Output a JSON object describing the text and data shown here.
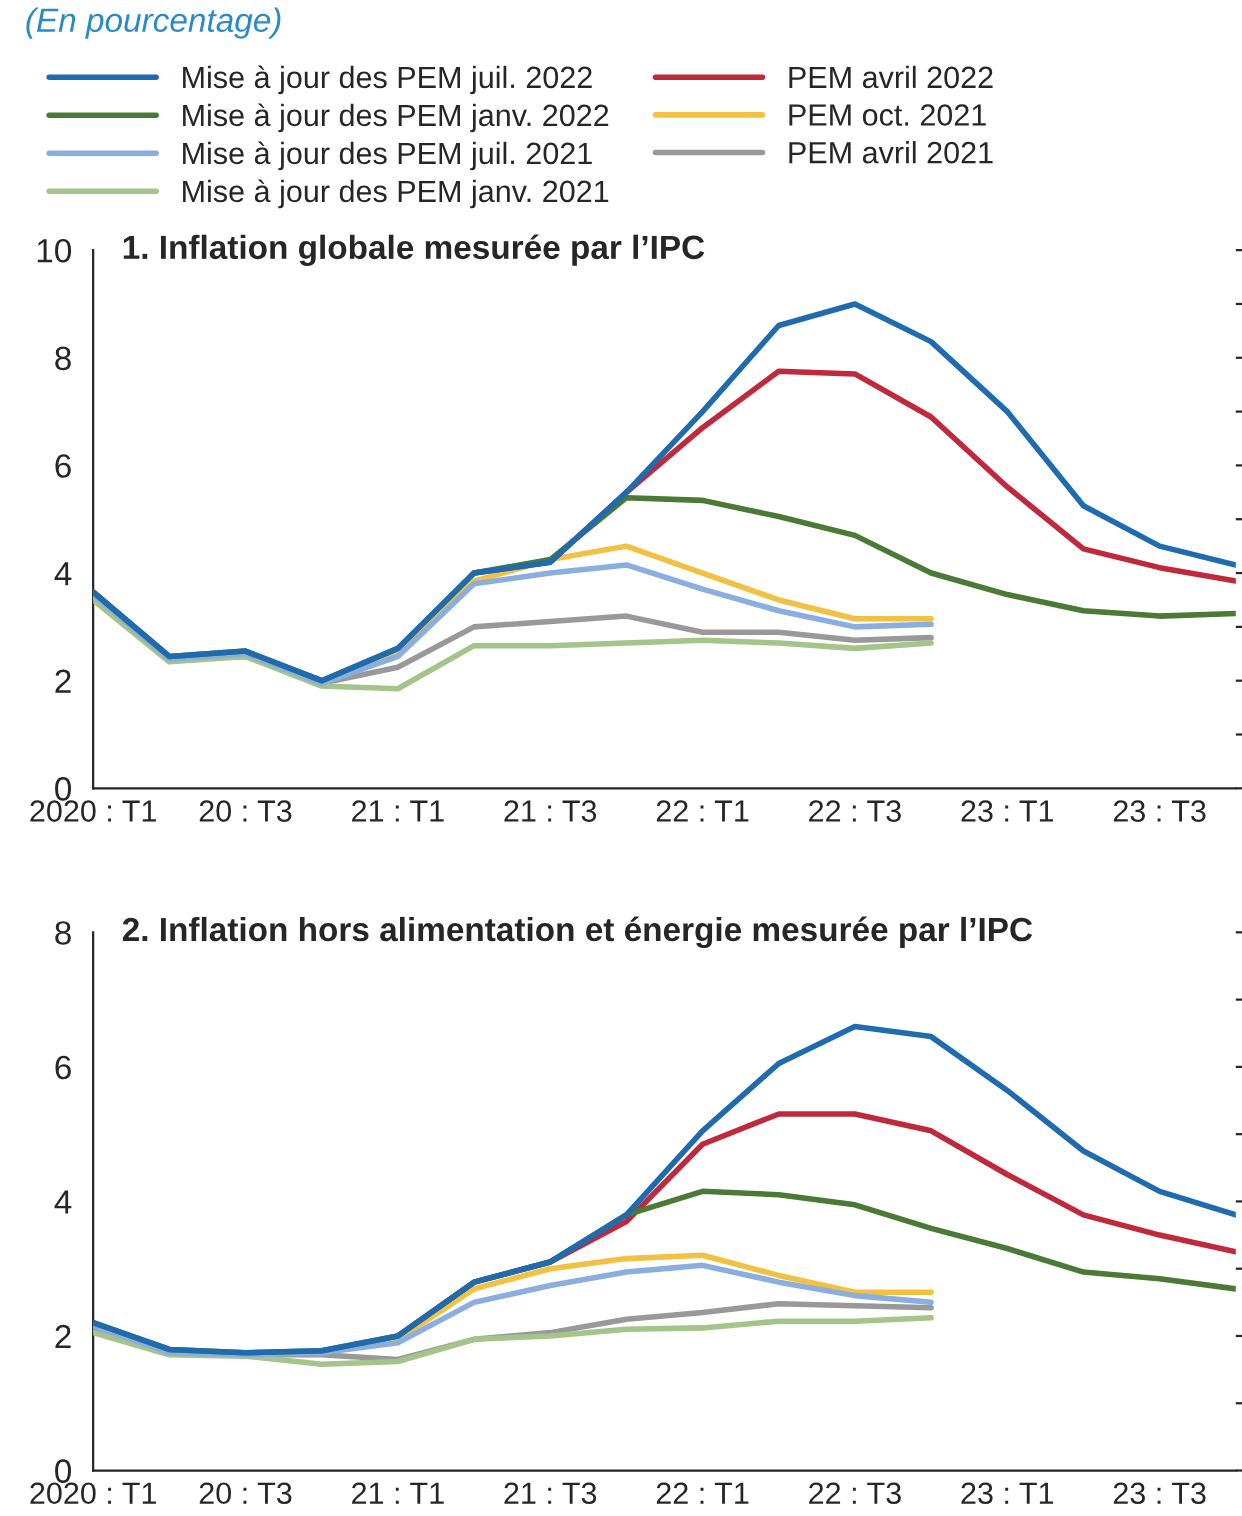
{
  "chart_data": [
    {
      "type": "line",
      "subtitle": "(En pourcentage)",
      "title": "1. Inflation globale mesurée par l’IPC",
      "categories": [
        "2020 : T1",
        null,
        "20 : T3",
        null,
        "21 : T1",
        null,
        "21 : T3",
        null,
        "22 : T1",
        null,
        "22 : T3",
        null,
        "23 : T1",
        null,
        "23 : T3",
        null
      ],
      "ylim": [
        0,
        10
      ],
      "yticks": [
        0,
        {
          "value": 1,
          "label": null
        },
        2,
        {
          "value": 3,
          "label": null
        },
        4,
        {
          "value": 5,
          "label": null
        },
        6,
        {
          "value": 7,
          "label": null
        },
        8,
        {
          "value": 9,
          "label": null
        },
        10
      ],
      "grid": false,
      "legend": "top",
      "marker": "none",
      "line_style": "solid",
      "series": [
        {
          "name": "Mise à jour des PEM juil. 2022",
          "color": "#1f6bb0",
          "values": [
            3.65,
            2.45,
            2.55,
            2.0,
            2.6,
            4.0,
            4.2,
            5.5,
            7.0,
            8.6,
            9.0,
            8.3,
            7.0,
            5.25,
            4.5,
            4.15
          ]
        },
        {
          "name": "Mise à jour des PEM janv. 2022",
          "color": "#4a7a35",
          "values": [
            3.65,
            2.45,
            2.55,
            2.0,
            2.6,
            4.0,
            4.25,
            5.4,
            5.35,
            5.05,
            4.7,
            4.0,
            3.6,
            3.3,
            3.2,
            3.25
          ]
        },
        {
          "name": "Mise à jour des PEM juil. 2021",
          "color": "#8aaee0",
          "values": [
            3.6,
            2.4,
            2.5,
            1.95,
            2.45,
            3.8,
            4.0,
            4.15,
            3.7,
            3.3,
            3.0,
            3.05,
            null,
            null,
            null,
            null
          ]
        },
        {
          "name": "Mise à jour des PEM janv. 2021",
          "color": "#a4c48a",
          "values": [
            3.5,
            2.35,
            2.45,
            1.9,
            1.85,
            2.65,
            2.65,
            2.7,
            2.75,
            2.7,
            2.6,
            2.7,
            null,
            null,
            null,
            null
          ]
        },
        {
          "name": "PEM avril 2022",
          "color": "#c0283c",
          "values": [
            null,
            null,
            null,
            null,
            null,
            4.0,
            4.2,
            5.5,
            6.7,
            7.75,
            7.7,
            6.9,
            5.6,
            4.45,
            4.1,
            3.85
          ]
        },
        {
          "name": "PEM oct. 2021",
          "color": "#f2c043",
          "values": [
            null,
            null,
            null,
            1.95,
            2.55,
            3.85,
            4.25,
            4.5,
            4.0,
            3.5,
            3.15,
            3.15,
            null,
            null,
            null,
            null
          ]
        },
        {
          "name": "PEM avril 2021",
          "color": "#999999",
          "values": [
            3.55,
            2.4,
            2.45,
            1.95,
            2.25,
            3.0,
            3.1,
            3.2,
            2.9,
            2.9,
            2.75,
            2.8,
            null,
            null,
            null,
            null
          ]
        }
      ]
    },
    {
      "type": "line",
      "title": "2. Inflation hors alimentation et énergie mesurée par l’IPC",
      "categories": [
        "2020 : T1",
        null,
        "20 : T3",
        null,
        "21 : T1",
        null,
        "21 : T3",
        null,
        "22 : T1",
        null,
        "22 : T3",
        null,
        "23 : T1",
        null,
        "23 : T3",
        null
      ],
      "ylim": [
        0,
        8
      ],
      "yticks": [
        0,
        {
          "value": 1,
          "label": null
        },
        2,
        {
          "value": 3,
          "label": null
        },
        4,
        {
          "value": 5,
          "label": null
        },
        6,
        {
          "value": 7,
          "label": null
        },
        8
      ],
      "grid": false,
      "marker": "none",
      "line_style": "solid",
      "series": [
        {
          "color": "#1f6bb0",
          "values": [
            2.2,
            1.8,
            1.75,
            1.78,
            2.0,
            2.8,
            3.1,
            3.8,
            5.05,
            6.05,
            6.6,
            6.45,
            5.65,
            4.75,
            4.15,
            3.8
          ]
        },
        {
          "color": "#4a7a35",
          "values": [
            2.2,
            1.8,
            1.75,
            1.78,
            2.0,
            2.8,
            3.1,
            3.8,
            4.15,
            4.1,
            3.95,
            3.6,
            3.3,
            2.95,
            2.85,
            2.7
          ]
        },
        {
          "color": "#8aaee0",
          "values": [
            2.15,
            1.75,
            1.72,
            1.75,
            1.9,
            2.5,
            2.75,
            2.95,
            3.05,
            2.8,
            2.6,
            2.5,
            null,
            null,
            null,
            null
          ]
        },
        {
          "color": "#a4c48a",
          "values": [
            2.05,
            1.72,
            1.7,
            1.58,
            1.62,
            1.95,
            2.0,
            2.1,
            2.12,
            2.22,
            2.22,
            2.27,
            null,
            null,
            null,
            null
          ]
        },
        {
          "color": "#c0283c",
          "values": [
            null,
            null,
            null,
            null,
            2.0,
            2.8,
            3.1,
            3.7,
            4.85,
            5.3,
            5.3,
            5.05,
            4.4,
            3.8,
            3.5,
            3.25
          ]
        },
        {
          "color": "#f2c043",
          "values": [
            null,
            null,
            null,
            1.75,
            1.95,
            2.7,
            3.0,
            3.15,
            3.2,
            2.9,
            2.65,
            2.65,
            null,
            null,
            null,
            null
          ]
        },
        {
          "color": "#999999",
          "values": [
            2.1,
            1.75,
            1.72,
            1.72,
            1.65,
            1.95,
            2.05,
            2.25,
            2.35,
            2.48,
            2.45,
            2.42,
            null,
            null,
            null,
            null
          ]
        }
      ]
    }
  ]
}
